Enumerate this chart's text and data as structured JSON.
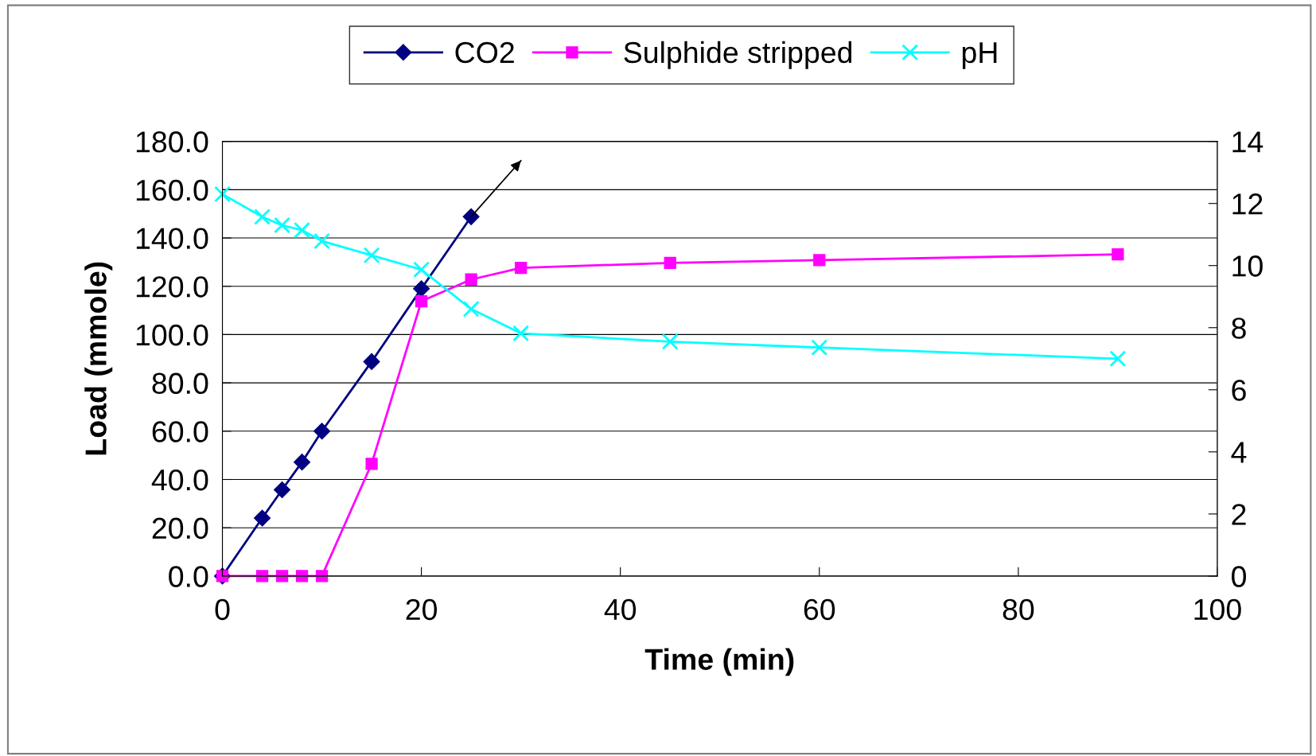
{
  "chart_data": {
    "type": "line",
    "xlabel": "Time (min)",
    "ylabel": "Load (mmole)",
    "xlim": [
      0,
      100
    ],
    "xticks": [
      0,
      20,
      40,
      60,
      80,
      100
    ],
    "ylim": [
      0,
      180
    ],
    "yticks": [
      {
        "value": 0,
        "label": "0.0"
      },
      {
        "value": 20,
        "label": "20.0"
      },
      {
        "value": 40,
        "label": "40.0"
      },
      {
        "value": 60,
        "label": "60.0"
      },
      {
        "value": 80,
        "label": "80.0"
      },
      {
        "value": 100,
        "label": "100.0"
      },
      {
        "value": 120,
        "label": "120.0"
      },
      {
        "value": 140,
        "label": "140.0"
      },
      {
        "value": 160,
        "label": "160.0"
      },
      {
        "value": 180,
        "label": "180.0"
      }
    ],
    "y2lim": [
      0,
      14
    ],
    "y2ticks": [
      0,
      2,
      4,
      6,
      8,
      10,
      12,
      14
    ],
    "grid": "y",
    "legend": "top",
    "series": [
      {
        "name": "CO2",
        "color": "#000080",
        "marker": "diamond",
        "x": [
          0,
          4,
          6,
          8,
          10,
          15,
          20,
          25
        ],
        "values": [
          0,
          24,
          35.7,
          47.2,
          60,
          88.8,
          119,
          148.8
        ]
      },
      {
        "name": "Sulphide stripped",
        "color": "#ff00ff",
        "marker": "square",
        "x": [
          0,
          4,
          6,
          8,
          10,
          15,
          20,
          25,
          30,
          45,
          60,
          90
        ],
        "values": [
          0,
          0,
          0,
          0,
          0,
          46.5,
          113.8,
          122.8,
          127.6,
          129.7,
          130.8,
          133.2
        ]
      },
      {
        "name": "pH",
        "color": "#00ffff",
        "marker": "cross",
        "axis": "y2",
        "x": [
          0,
          4,
          6,
          8,
          10,
          15,
          20,
          25,
          30,
          45,
          60,
          90
        ],
        "values": [
          12.3,
          11.57,
          11.3,
          11.14,
          10.79,
          10.33,
          9.87,
          8.6,
          7.82,
          7.55,
          7.36,
          7.0
        ]
      },
      {
        "type": "line",
        "color": "#000000",
        "marker": "none",
        "x": [
          25,
          30
        ],
        "values": [
          148.8,
          172
        ]
      }
    ]
  }
}
